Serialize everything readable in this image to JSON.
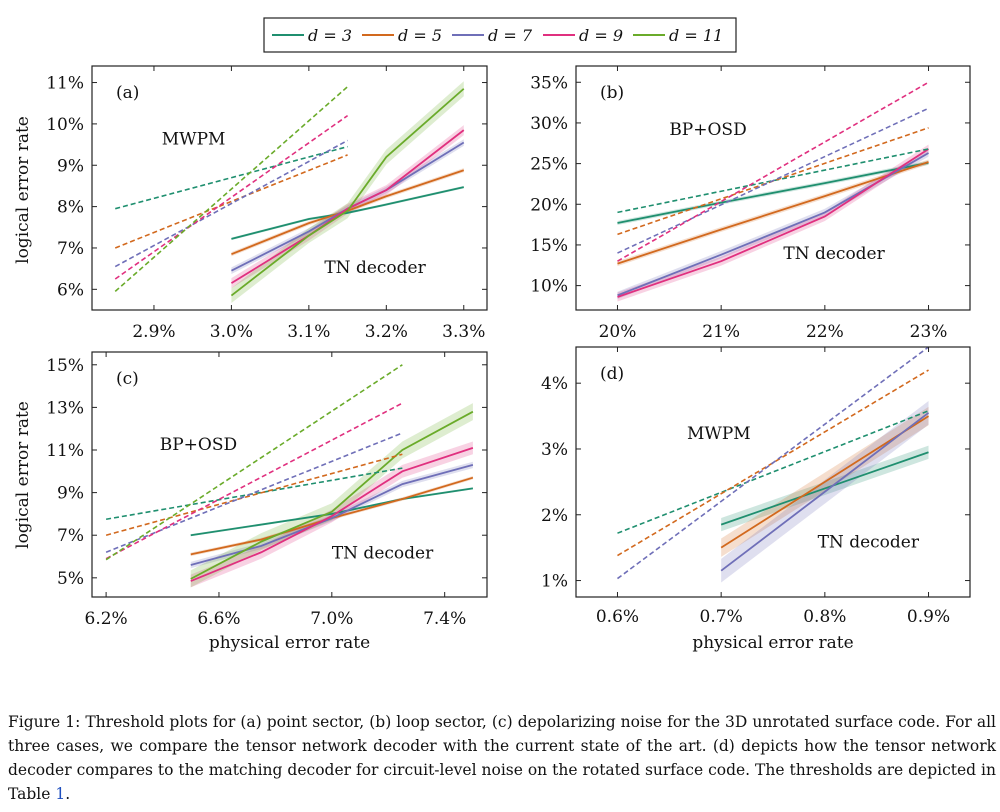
{
  "legend": [
    {
      "label": "d = 3",
      "color": "#1f8f6f"
    },
    {
      "label": "d = 5",
      "color": "#d2691e"
    },
    {
      "label": "d = 7",
      "color": "#6f6fb8"
    },
    {
      "label": "d = 9",
      "color": "#e0307f"
    },
    {
      "label": "d = 11",
      "color": "#6aab2a"
    }
  ],
  "caption": {
    "prefix": "Figure 1: Threshold plots for (a) point sector, (b) loop sector, (c) depolarizing noise for the 3D unrotated surface code. For all three cases, we compare the tensor network decoder with the current state of the art. (d) depicts how the tensor network decoder compares to the matching decoder for circuit-level noise on the rotated surface code. The thresholds are depicted in Table ",
    "ref": "1",
    "suffix": "."
  },
  "chart_data": [
    {
      "id": "a",
      "type": "line",
      "panel_label": "(a)",
      "xlabel": "",
      "ylabel": "logical error rate",
      "xlim": [
        2.82,
        3.33
      ],
      "ylim": [
        5.5,
        11.4
      ],
      "xticks": [
        2.9,
        3.0,
        3.1,
        3.2,
        3.3
      ],
      "xtick_labels": [
        "2.9%",
        "3.0%",
        "3.1%",
        "3.2%",
        "3.3%"
      ],
      "yticks": [
        6,
        7,
        8,
        9,
        10,
        11
      ],
      "ytick_labels": [
        "6%",
        "7%",
        "8%",
        "9%",
        "10%",
        "11%"
      ],
      "annotations": [
        {
          "text": "MWPM",
          "x": 2.91,
          "y": 9.5
        },
        {
          "text": "TN decoder",
          "x": 3.12,
          "y": 6.4
        }
      ],
      "series": [
        {
          "name": "d = 3",
          "decoder": "TN",
          "x": [
            3.0,
            3.1,
            3.15,
            3.2,
            3.3
          ],
          "values": [
            7.22,
            7.7,
            7.85,
            8.05,
            8.47
          ],
          "band": 0.03
        },
        {
          "name": "d = 5",
          "decoder": "TN",
          "x": [
            3.0,
            3.1,
            3.15,
            3.2,
            3.3
          ],
          "values": [
            6.85,
            7.6,
            7.9,
            8.25,
            8.88
          ],
          "band": 0.05
        },
        {
          "name": "d = 7",
          "decoder": "TN",
          "x": [
            3.0,
            3.1,
            3.15,
            3.2,
            3.3
          ],
          "values": [
            6.45,
            7.4,
            7.95,
            8.4,
            9.55
          ],
          "band": 0.08
        },
        {
          "name": "d = 9",
          "decoder": "TN",
          "x": [
            3.0,
            3.1,
            3.15,
            3.2,
            3.3
          ],
          "values": [
            6.15,
            7.3,
            7.95,
            8.4,
            9.85
          ],
          "band": 0.12
        },
        {
          "name": "d = 11",
          "decoder": "TN",
          "x": [
            3.0,
            3.1,
            3.15,
            3.2,
            3.3
          ],
          "values": [
            5.85,
            7.3,
            7.9,
            9.2,
            10.85
          ],
          "band": 0.18
        },
        {
          "name": "d = 3",
          "decoder": "MWPM",
          "x": [
            2.85,
            3.15
          ],
          "values": [
            7.95,
            9.45
          ]
        },
        {
          "name": "d = 5",
          "decoder": "MWPM",
          "x": [
            2.85,
            3.15
          ],
          "values": [
            7.0,
            9.25
          ]
        },
        {
          "name": "d = 7",
          "decoder": "MWPM",
          "x": [
            2.85,
            3.15
          ],
          "values": [
            6.55,
            9.6
          ]
        },
        {
          "name": "d = 9",
          "decoder": "MWPM",
          "x": [
            2.85,
            3.15
          ],
          "values": [
            6.25,
            10.2
          ]
        },
        {
          "name": "d = 11",
          "decoder": "MWPM",
          "x": [
            2.85,
            3.15
          ],
          "values": [
            5.95,
            10.9
          ]
        }
      ]
    },
    {
      "id": "b",
      "type": "line",
      "panel_label": "(b)",
      "xlabel": "",
      "ylabel": "",
      "xlim": [
        19.6,
        23.4
      ],
      "ylim": [
        7,
        37
      ],
      "xticks": [
        20,
        21,
        22,
        23
      ],
      "xtick_labels": [
        "20%",
        "21%",
        "22%",
        "23%"
      ],
      "yticks": [
        10,
        15,
        20,
        25,
        30,
        35
      ],
      "ytick_labels": [
        "10%",
        "15%",
        "20%",
        "25%",
        "30%",
        "35%"
      ],
      "annotations": [
        {
          "text": "BP+OSD",
          "x": 20.5,
          "y": 28.5
        },
        {
          "text": "TN decoder",
          "x": 21.6,
          "y": 13.3
        }
      ],
      "series": [
        {
          "name": "d = 3",
          "decoder": "TN",
          "x": [
            20,
            21,
            22,
            23
          ],
          "values": [
            17.7,
            20.2,
            22.6,
            25.1
          ],
          "band": 0.25
        },
        {
          "name": "d = 5",
          "decoder": "TN",
          "x": [
            20,
            21,
            22,
            23
          ],
          "values": [
            12.7,
            16.9,
            21.0,
            25.2
          ],
          "band": 0.3
        },
        {
          "name": "d = 7",
          "decoder": "TN",
          "x": [
            20,
            21,
            22,
            23
          ],
          "values": [
            8.8,
            13.8,
            19.0,
            26.3
          ],
          "band": 0.45
        },
        {
          "name": "d = 9",
          "decoder": "TN",
          "x": [
            20,
            21,
            22,
            23
          ],
          "values": [
            8.6,
            13.0,
            18.5,
            26.8
          ],
          "band": 0.55
        },
        {
          "name": "d = 3",
          "decoder": "BP+OSD",
          "x": [
            20,
            23
          ],
          "values": [
            19.0,
            26.8
          ]
        },
        {
          "name": "d = 5",
          "decoder": "BP+OSD",
          "x": [
            20,
            23
          ],
          "values": [
            16.3,
            29.4
          ]
        },
        {
          "name": "d = 7",
          "decoder": "BP+OSD",
          "x": [
            20,
            23
          ],
          "values": [
            14.0,
            31.8
          ]
        },
        {
          "name": "d = 9",
          "decoder": "BP+OSD",
          "x": [
            20,
            23
          ],
          "values": [
            13.0,
            35.0
          ]
        }
      ]
    },
    {
      "id": "c",
      "type": "line",
      "panel_label": "(c)",
      "xlabel": "physical error rate",
      "ylabel": "logical error rate",
      "xlim": [
        6.15,
        7.55
      ],
      "ylim": [
        4.1,
        15.6
      ],
      "xticks": [
        6.2,
        6.6,
        7.0,
        7.4
      ],
      "xtick_labels": [
        "6.2%",
        "6.6%",
        "7.0%",
        "7.4%"
      ],
      "yticks": [
        5,
        7,
        9,
        11,
        13,
        15
      ],
      "ytick_labels": [
        "5%",
        "7%",
        "9%",
        "11%",
        "13%",
        "15%"
      ],
      "annotations": [
        {
          "text": "BP+OSD",
          "x": 6.39,
          "y": 11.0
        },
        {
          "text": "TN decoder",
          "x": 7.0,
          "y": 5.9
        }
      ],
      "series": [
        {
          "name": "d = 3",
          "decoder": "TN",
          "x": [
            6.5,
            7.0,
            7.25,
            7.5
          ],
          "values": [
            7.0,
            8.0,
            8.7,
            9.2
          ],
          "band": 0.05
        },
        {
          "name": "d = 5",
          "decoder": "TN",
          "x": [
            6.5,
            6.75,
            7.0,
            7.25,
            7.5
          ],
          "values": [
            6.1,
            6.8,
            7.8,
            8.7,
            9.7
          ],
          "band": 0.08
        },
        {
          "name": "d = 7",
          "decoder": "TN",
          "x": [
            6.5,
            6.75,
            7.0,
            7.25,
            7.5
          ],
          "values": [
            5.6,
            6.5,
            7.8,
            9.4,
            10.3
          ],
          "band": 0.15
        },
        {
          "name": "d = 9",
          "decoder": "TN",
          "x": [
            6.5,
            6.75,
            7.0,
            7.25,
            7.5
          ],
          "values": [
            4.85,
            6.2,
            7.9,
            10.0,
            11.1
          ],
          "band": 0.3
        },
        {
          "name": "d = 11",
          "decoder": "TN",
          "x": [
            6.5,
            6.75,
            7.0,
            7.25,
            7.5
          ],
          "values": [
            4.95,
            6.7,
            8.1,
            11.0,
            12.8
          ],
          "band": 0.4
        },
        {
          "name": "d = 3",
          "decoder": "BP+OSD",
          "x": [
            6.2,
            7.25
          ],
          "values": [
            7.75,
            10.15
          ]
        },
        {
          "name": "d = 5",
          "decoder": "BP+OSD",
          "x": [
            6.2,
            7.25
          ],
          "values": [
            7.0,
            10.8
          ]
        },
        {
          "name": "d = 7",
          "decoder": "BP+OSD",
          "x": [
            6.2,
            7.25
          ],
          "values": [
            6.2,
            11.8
          ]
        },
        {
          "name": "d = 9",
          "decoder": "BP+OSD",
          "x": [
            6.2,
            7.25
          ],
          "values": [
            5.9,
            13.2
          ]
        },
        {
          "name": "d = 11",
          "decoder": "BP+OSD",
          "x": [
            6.2,
            7.25
          ],
          "values": [
            5.85,
            15.0
          ]
        }
      ]
    },
    {
      "id": "d",
      "type": "line",
      "panel_label": "(d)",
      "xlabel": "physical error rate",
      "ylabel": "",
      "xlim": [
        0.56,
        0.94
      ],
      "ylim": [
        0.75,
        4.55
      ],
      "xticks": [
        0.6,
        0.7,
        0.8,
        0.9
      ],
      "xtick_labels": [
        "0.6%",
        "0.7%",
        "0.8%",
        "0.9%"
      ],
      "yticks": [
        1,
        2,
        3,
        4
      ],
      "ytick_labels": [
        "1%",
        "2%",
        "3%",
        "4%"
      ],
      "annotations": [
        {
          "text": "MWPM",
          "x": 0.667,
          "y": 3.15
        },
        {
          "text": "TN decoder",
          "x": 0.793,
          "y": 1.5
        }
      ],
      "series": [
        {
          "name": "d = 3",
          "decoder": "TN",
          "x": [
            0.7,
            0.8,
            0.9
          ],
          "values": [
            1.85,
            2.4,
            2.95
          ],
          "band": 0.1
        },
        {
          "name": "d = 5",
          "decoder": "TN",
          "x": [
            0.7,
            0.8,
            0.9
          ],
          "values": [
            1.5,
            2.5,
            3.5
          ],
          "band": 0.14
        },
        {
          "name": "d = 7",
          "decoder": "TN",
          "x": [
            0.7,
            0.8,
            0.9
          ],
          "values": [
            1.15,
            2.35,
            3.55
          ],
          "band": 0.18
        },
        {
          "name": "d = 3",
          "decoder": "MWPM",
          "x": [
            0.6,
            0.9
          ],
          "values": [
            1.72,
            3.58
          ]
        },
        {
          "name": "d = 5",
          "decoder": "MWPM",
          "x": [
            0.6,
            0.9
          ],
          "values": [
            1.38,
            4.2
          ]
        },
        {
          "name": "d = 7",
          "decoder": "MWPM",
          "x": [
            0.6,
            0.9
          ],
          "values": [
            1.03,
            4.55
          ]
        }
      ]
    }
  ]
}
